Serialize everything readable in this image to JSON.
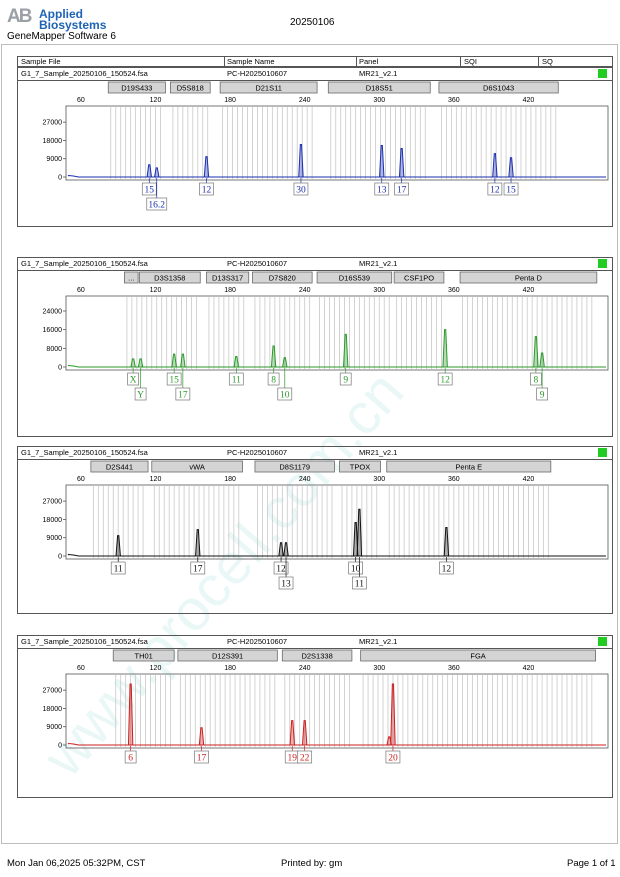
{
  "header": {
    "logo_mark": "AB",
    "logo_line1": "Applied",
    "logo_line2": "Biosystems",
    "software": "GeneMapper Software 6",
    "run_date": "20250106"
  },
  "table_header": {
    "sample_file": "Sample File",
    "sample_name": "Sample Name",
    "panel": "Panel",
    "sqi": "SQI",
    "sq": "SQ"
  },
  "watermark": "www.procell.com.cn",
  "colors": {
    "blue": "#1a2fb0",
    "green": "#2a9a2a",
    "black": "#111111",
    "red": "#cc1f1f",
    "qc": "#22cc22",
    "bin": "#c8c8c8",
    "marker": "#d4d4d4"
  },
  "x_ticks": [
    60,
    120,
    180,
    240,
    300,
    360,
    420
  ],
  "panels": [
    {
      "file": "G1_7_Sample_20250106_150524.fsa",
      "sample": "PC-H2025010607",
      "panel": "MR21_v2.1",
      "dye": "blue",
      "y_ticks": [
        "27000",
        "18000",
        "9000",
        "0"
      ],
      "y_max": 31000,
      "markers": [
        {
          "name": "D19S433",
          "start": 82,
          "end": 128
        },
        {
          "name": "D5S818",
          "start": 132,
          "end": 164
        },
        {
          "name": "D21S11",
          "start": 172,
          "end": 250
        },
        {
          "name": "D18S51",
          "start": 259,
          "end": 341
        },
        {
          "name": "D6S1043",
          "start": 348,
          "end": 444
        }
      ],
      "peaks": [
        {
          "x": 115,
          "h": 6000
        },
        {
          "x": 121,
          "h": 4500
        },
        {
          "x": 161,
          "h": 10000
        },
        {
          "x": 237,
          "h": 16000
        },
        {
          "x": 302,
          "h": 15500
        },
        {
          "x": 318,
          "h": 14000
        },
        {
          "x": 393,
          "h": 11500
        },
        {
          "x": 406,
          "h": 9500
        }
      ],
      "labels": [
        {
          "text": "15",
          "x": 115,
          "row": 0
        },
        {
          "text": "16.2",
          "x": 121,
          "row": 1
        },
        {
          "text": "12",
          "x": 161,
          "row": 0
        },
        {
          "text": "30",
          "x": 237,
          "row": 0
        },
        {
          "text": "13",
          "x": 302,
          "row": 0
        },
        {
          "text": "17",
          "x": 318,
          "row": 0
        },
        {
          "text": "12",
          "x": 393,
          "row": 0
        },
        {
          "text": "15",
          "x": 406,
          "row": 0
        }
      ]
    },
    {
      "file": "G1_7_Sample_20250106_150524.fsa",
      "sample": "PC-H2025010607",
      "panel": "MR21_v2.1",
      "dye": "green",
      "y_ticks": [
        "24000",
        "16000",
        "8000",
        "0"
      ],
      "y_max": 27000,
      "markers": [
        {
          "name": "...",
          "start": 95,
          "end": 106
        },
        {
          "name": "D3S1358",
          "start": 107,
          "end": 156
        },
        {
          "name": "D13S317",
          "start": 161,
          "end": 195
        },
        {
          "name": "D7S820",
          "start": 198,
          "end": 246
        },
        {
          "name": "D16S539",
          "start": 250,
          "end": 310
        },
        {
          "name": "CSF1PO",
          "start": 312,
          "end": 352
        },
        {
          "name": "Penta D",
          "start": 365,
          "end": 475
        }
      ],
      "peaks": [
        {
          "x": 102,
          "h": 3500
        },
        {
          "x": 108,
          "h": 3500
        },
        {
          "x": 135,
          "h": 5500
        },
        {
          "x": 142,
          "h": 5500
        },
        {
          "x": 185,
          "h": 4500
        },
        {
          "x": 215,
          "h": 9000
        },
        {
          "x": 224,
          "h": 4000
        },
        {
          "x": 273,
          "h": 14000
        },
        {
          "x": 353,
          "h": 16000
        },
        {
          "x": 426,
          "h": 13000
        },
        {
          "x": 431,
          "h": 6000
        }
      ],
      "labels": [
        {
          "text": "X",
          "x": 102,
          "row": 0
        },
        {
          "text": "Y",
          "x": 108,
          "row": 1
        },
        {
          "text": "15",
          "x": 135,
          "row": 0
        },
        {
          "text": "17",
          "x": 142,
          "row": 1
        },
        {
          "text": "11",
          "x": 185,
          "row": 0
        },
        {
          "text": "8",
          "x": 215,
          "row": 0
        },
        {
          "text": "10",
          "x": 224,
          "row": 1
        },
        {
          "text": "9",
          "x": 273,
          "row": 0
        },
        {
          "text": "12",
          "x": 353,
          "row": 0
        },
        {
          "text": "8",
          "x": 426,
          "row": 0
        },
        {
          "text": "9",
          "x": 431,
          "row": 1
        }
      ]
    },
    {
      "file": "G1_7_Sample_20250106_150524.fsa",
      "sample": "PC-H2025010607",
      "panel": "MR21_v2.1",
      "dye": "black",
      "y_ticks": [
        "27000",
        "18000",
        "9000",
        "0"
      ],
      "y_max": 31000,
      "markers": [
        {
          "name": "D2S441",
          "start": 68,
          "end": 114
        },
        {
          "name": "vWA",
          "start": 117,
          "end": 190
        },
        {
          "name": "D8S1179",
          "start": 200,
          "end": 264
        },
        {
          "name": "TPOX",
          "start": 268,
          "end": 301
        },
        {
          "name": "Penta E",
          "start": 306,
          "end": 438
        }
      ],
      "peaks": [
        {
          "x": 90,
          "h": 10000
        },
        {
          "x": 154,
          "h": 13000
        },
        {
          "x": 221,
          "h": 6500
        },
        {
          "x": 225,
          "h": 6500
        },
        {
          "x": 281,
          "h": 16500
        },
        {
          "x": 284,
          "h": 23000
        },
        {
          "x": 354,
          "h": 14000
        }
      ],
      "labels": [
        {
          "text": "11",
          "x": 90,
          "row": 0
        },
        {
          "text": "17",
          "x": 154,
          "row": 0
        },
        {
          "text": "12",
          "x": 221,
          "row": 0
        },
        {
          "text": "13",
          "x": 225,
          "row": 1
        },
        {
          "text": "10",
          "x": 281,
          "row": 0
        },
        {
          "text": "11",
          "x": 284,
          "row": 1
        },
        {
          "text": "12",
          "x": 354,
          "row": 0
        }
      ]
    },
    {
      "file": "G1_7_Sample_20250106_150524.fsa",
      "sample": "PC-H2025010607",
      "panel": "MR21_v2.1",
      "dye": "red",
      "y_ticks": [
        "27000",
        "18000",
        "9000",
        "0"
      ],
      "y_max": 31000,
      "markers": [
        {
          "name": "TH01",
          "start": 86,
          "end": 135
        },
        {
          "name": "D12S391",
          "start": 138,
          "end": 218
        },
        {
          "name": "D2S1338",
          "start": 222,
          "end": 278
        },
        {
          "name": "FGA",
          "start": 285,
          "end": 474
        }
      ],
      "peaks": [
        {
          "x": 100,
          "h": 30000
        },
        {
          "x": 157,
          "h": 8500
        },
        {
          "x": 230,
          "h": 12000
        },
        {
          "x": 240,
          "h": 12000
        },
        {
          "x": 308,
          "h": 4000
        },
        {
          "x": 311,
          "h": 30000
        }
      ],
      "labels": [
        {
          "text": "6",
          "x": 100,
          "row": 0
        },
        {
          "text": "17",
          "x": 157,
          "row": 0
        },
        {
          "text": "19",
          "x": 230,
          "row": 0
        },
        {
          "text": "22",
          "x": 240,
          "row": 0
        },
        {
          "text": "20",
          "x": 311,
          "row": 0
        }
      ]
    }
  ],
  "chart_data": [
    {
      "type": "line",
      "title": "G1_7_Sample_20250106_150524.fsa",
      "series": [
        {
          "name": "blue",
          "x": [
            115,
            121,
            161,
            237,
            302,
            318,
            393,
            406
          ],
          "values": [
            6000,
            4500,
            10000,
            16000,
            15500,
            14000,
            11500,
            9500
          ]
        }
      ],
      "x_ticks": [
        60,
        120,
        180,
        240,
        300,
        360,
        420
      ],
      "y_ticks": [
        0,
        9000,
        18000,
        27000
      ],
      "alleles": [
        "15",
        "16.2",
        "12",
        "30",
        "13",
        "17",
        "12",
        "15"
      ],
      "markers": [
        "D19S433",
        "D5S818",
        "D21S11",
        "D18S51",
        "D6S1043"
      ]
    },
    {
      "type": "line",
      "title": "G1_7_Sample_20250106_150524.fsa",
      "series": [
        {
          "name": "green",
          "x": [
            102,
            108,
            135,
            142,
            185,
            215,
            224,
            273,
            353,
            426,
            431
          ],
          "values": [
            3500,
            3500,
            5500,
            5500,
            4500,
            9000,
            4000,
            14000,
            16000,
            13000,
            6000
          ]
        }
      ],
      "x_ticks": [
        60,
        120,
        180,
        240,
        300,
        360,
        420
      ],
      "y_ticks": [
        0,
        8000,
        16000,
        24000
      ],
      "alleles": [
        "X",
        "Y",
        "15",
        "17",
        "11",
        "8",
        "10",
        "9",
        "12",
        "8",
        "9"
      ],
      "markers": [
        "...",
        "D3S1358",
        "D13S317",
        "D7S820",
        "D16S539",
        "CSF1PO",
        "Penta D"
      ]
    },
    {
      "type": "line",
      "title": "G1_7_Sample_20250106_150524.fsa",
      "series": [
        {
          "name": "black",
          "x": [
            90,
            154,
            221,
            225,
            281,
            284,
            354
          ],
          "values": [
            10000,
            13000,
            6500,
            6500,
            16500,
            23000,
            14000
          ]
        }
      ],
      "x_ticks": [
        60,
        120,
        180,
        240,
        300,
        360,
        420
      ],
      "y_ticks": [
        0,
        9000,
        18000,
        27000
      ],
      "alleles": [
        "11",
        "17",
        "12",
        "13",
        "10",
        "11",
        "12"
      ],
      "markers": [
        "D2S441",
        "vWA",
        "D8S1179",
        "TPOX",
        "Penta E"
      ]
    },
    {
      "type": "line",
      "title": "G1_7_Sample_20250106_150524.fsa",
      "series": [
        {
          "name": "red",
          "x": [
            100,
            157,
            230,
            240,
            308,
            311
          ],
          "values": [
            30000,
            8500,
            12000,
            12000,
            4000,
            30000
          ]
        }
      ],
      "x_ticks": [
        60,
        120,
        180,
        240,
        300,
        360,
        420
      ],
      "y_ticks": [
        0,
        9000,
        18000,
        27000
      ],
      "alleles": [
        "6",
        "17",
        "19",
        "22",
        "20"
      ],
      "markers": [
        "TH01",
        "D12S391",
        "D2S1338",
        "FGA"
      ]
    }
  ],
  "footer": {
    "timestamp": "Mon Jan 06,2025 05:32PM, CST",
    "printed_by": "Printed by: gm",
    "page": "Page 1 of 1"
  }
}
